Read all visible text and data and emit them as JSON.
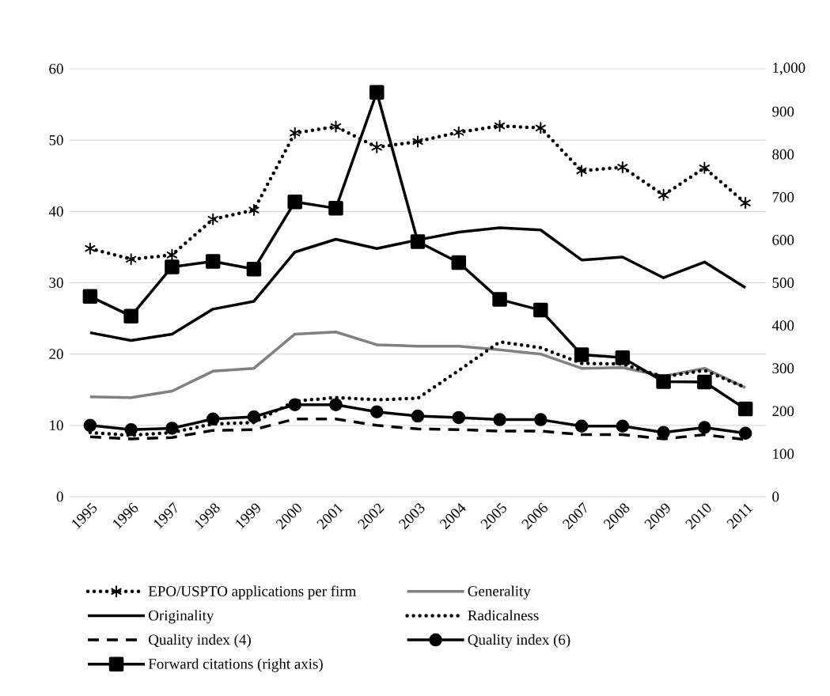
{
  "chart_data": {
    "type": "line",
    "categories": [
      "1995",
      "1996",
      "1997",
      "1998",
      "1999",
      "2000",
      "2001",
      "2002",
      "2003",
      "2004",
      "2005",
      "2006",
      "2007",
      "2008",
      "2009",
      "2010",
      "2011"
    ],
    "series": [
      {
        "name": "EPO/USPTO applications per firm",
        "color": "#000000",
        "line_style": "dotted",
        "marker": "cross",
        "values": [
          34.8,
          33.3,
          33.9,
          38.9,
          40.2,
          51.0,
          51.9,
          49.0,
          49.8,
          51.1,
          52.0,
          51.7,
          45.7,
          46.2,
          42.3,
          46.1,
          41.2
        ]
      },
      {
        "name": "Generality",
        "color": "#808080",
        "line_style": "solid",
        "marker": "none",
        "values": [
          14.0,
          13.9,
          14.8,
          17.6,
          18.0,
          22.8,
          23.1,
          21.3,
          21.1,
          21.1,
          20.6,
          20.0,
          18.0,
          18.1,
          16.9,
          18.0,
          15.3
        ]
      },
      {
        "name": "Originality",
        "color": "#000000",
        "line_style": "solid",
        "marker": "none",
        "values": [
          23.0,
          21.9,
          22.8,
          26.3,
          27.4,
          34.3,
          36.1,
          34.8,
          36.0,
          37.1,
          37.7,
          37.4,
          33.2,
          33.6,
          30.7,
          32.9,
          29.3
        ]
      },
      {
        "name": "Radicalness",
        "color": "#000000",
        "line_style": "dotted",
        "marker": "none",
        "values": [
          9.0,
          8.6,
          9.0,
          10.2,
          10.4,
          13.4,
          13.9,
          13.6,
          13.8,
          17.7,
          21.7,
          20.9,
          18.7,
          18.6,
          16.8,
          17.7,
          15.3
        ]
      },
      {
        "name": "Quality index (4)",
        "color": "#000000",
        "line_style": "dashed",
        "marker": "none",
        "values": [
          8.4,
          8.1,
          8.3,
          9.3,
          9.4,
          10.9,
          10.9,
          10.0,
          9.5,
          9.4,
          9.2,
          9.2,
          8.7,
          8.7,
          8.1,
          8.7,
          8.0
        ]
      },
      {
        "name": "Quality index (6)",
        "color": "#000000",
        "line_style": "solid",
        "marker": "circle",
        "values": [
          10.0,
          9.4,
          9.6,
          10.9,
          11.2,
          12.9,
          12.9,
          11.9,
          11.3,
          11.1,
          10.8,
          10.8,
          9.9,
          9.9,
          9.0,
          9.7,
          8.9
        ]
      },
      {
        "name": "Forward citations (right axis)",
        "color": "#000000",
        "line_style": "solid",
        "marker": "square",
        "axis": "y2",
        "values": [
          468,
          422,
          537,
          550,
          532,
          689,
          674,
          945,
          596,
          547,
          461,
          436,
          332,
          325,
          269,
          268,
          205
        ]
      }
    ],
    "ylim": [
      0,
      60
    ],
    "yticks": [
      0,
      10,
      20,
      30,
      40,
      50,
      60
    ],
    "y2lim": [
      0,
      1000
    ],
    "y2ticks": [
      0,
      100,
      200,
      300,
      400,
      500,
      600,
      700,
      800,
      900,
      {
        "value": 1000,
        "label": "1,000"
      }
    ],
    "grid": "y",
    "legend": "bottom"
  }
}
